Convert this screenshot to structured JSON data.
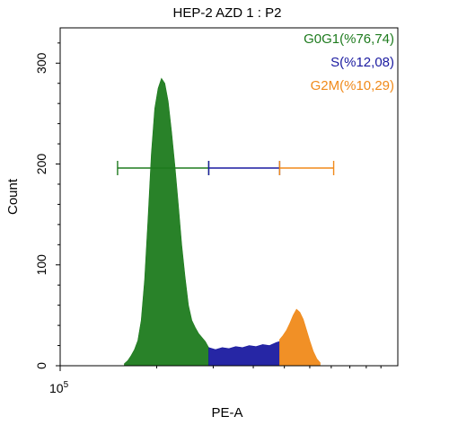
{
  "chart_data": {
    "type": "area",
    "title": "HEP-2 AZD 1 : P2",
    "xlabel": "PE-A",
    "ylabel": "Count",
    "x_tick_labels": [
      {
        "base": "10",
        "exp": "5"
      }
    ],
    "y_ticks": [
      0,
      100,
      200,
      300
    ],
    "ylim": [
      0,
      335
    ],
    "xlim": [
      0,
      1000
    ],
    "grid": false,
    "legend_position": "top-right",
    "series": [
      {
        "name": "G0G1(%76,74)",
        "color": "#1e7b1e",
        "x": [
          190,
          200,
          210,
          220,
          230,
          240,
          250,
          260,
          270,
          280,
          290,
          300,
          310,
          320,
          330,
          340,
          350,
          360,
          370,
          380,
          390,
          400,
          410,
          420,
          430,
          440
        ],
        "values": [
          2,
          5,
          10,
          16,
          25,
          45,
          85,
          145,
          210,
          255,
          275,
          285,
          280,
          262,
          232,
          198,
          160,
          120,
          88,
          60,
          45,
          38,
          32,
          28,
          24,
          18
        ]
      },
      {
        "name": "S(%12,08)",
        "color": "#1a1aa0",
        "x": [
          440,
          460,
          480,
          500,
          520,
          540,
          560,
          580,
          600,
          620,
          640,
          650
        ],
        "values": [
          18,
          16,
          18,
          17,
          19,
          18,
          20,
          19,
          21,
          20,
          23,
          24
        ]
      },
      {
        "name": "G2M(%10,29)",
        "color": "#f08a1a",
        "x": [
          650,
          660,
          670,
          680,
          690,
          700,
          710,
          720,
          730,
          740,
          750,
          760,
          770
        ],
        "values": [
          26,
          30,
          35,
          42,
          50,
          56,
          53,
          46,
          35,
          24,
          14,
          7,
          3
        ]
      }
    ],
    "gates": [
      {
        "series": "G0G1(%76,74)",
        "color": "#1e7b1e",
        "x_start": 170,
        "x_end": 440,
        "y": 196
      },
      {
        "series": "S(%12,08)",
        "color": "#1a1aa0",
        "x_start": 440,
        "x_end": 650,
        "y": 196
      },
      {
        "series": "G2M(%10,29)",
        "color": "#f08a1a",
        "x_start": 650,
        "x_end": 810,
        "y": 196
      }
    ]
  }
}
